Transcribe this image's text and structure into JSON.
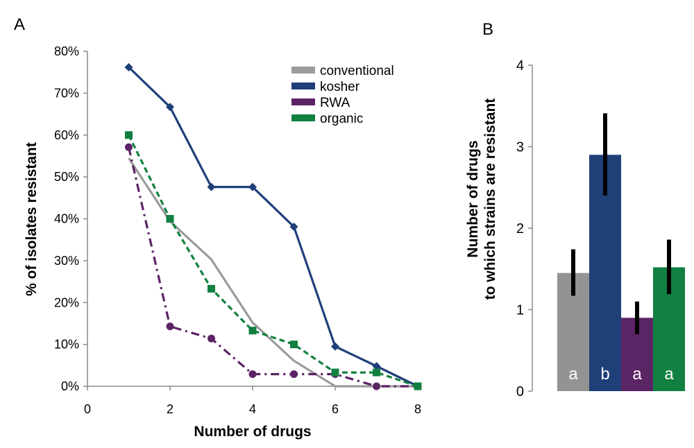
{
  "chart_data": [
    {
      "panel_label": "A",
      "type": "line",
      "xlabel": "Number of drugs",
      "ylabel": "% of isolates resistant",
      "xlim": [
        0,
        8
      ],
      "ylim": [
        0,
        80
      ],
      "x_ticks": [
        "0",
        "2",
        "4",
        "6",
        "8"
      ],
      "y_ticks": [
        "0%",
        "10%",
        "20%",
        "30%",
        "40%",
        "50%",
        "60%",
        "70%",
        "80%"
      ],
      "grid": false,
      "legend_position": "top-right",
      "series": [
        {
          "name": "conventional",
          "color": "#9b9b9b",
          "line_style": "solid",
          "marker": "none",
          "x": [
            1,
            2,
            3,
            4,
            5,
            6,
            7,
            8
          ],
          "y": [
            54.5,
            39.4,
            30.3,
            15.2,
            6.1,
            0,
            0,
            0
          ]
        },
        {
          "name": "kosher",
          "color": "#1f3f79",
          "line_style": "solid",
          "marker": "diamond",
          "x": [
            1,
            2,
            3,
            4,
            5,
            6,
            7,
            8
          ],
          "y": [
            76.2,
            66.7,
            47.6,
            47.6,
            38.1,
            9.5,
            4.8,
            0
          ]
        },
        {
          "name": "RWA",
          "color": "#5b2464",
          "line_style": "dash-dot",
          "marker": "circle",
          "x": [
            1,
            2,
            3,
            4,
            5,
            6,
            7,
            8
          ],
          "y": [
            57.1,
            14.3,
            11.4,
            2.9,
            2.9,
            2.9,
            0,
            0
          ]
        },
        {
          "name": "organic",
          "color": "#118040",
          "line_style": "dashed",
          "marker": "square",
          "x": [
            1,
            2,
            3,
            4,
            5,
            6,
            7,
            8
          ],
          "y": [
            60,
            40,
            23.3,
            13.3,
            10,
            3.3,
            3.3,
            0
          ]
        }
      ]
    },
    {
      "panel_label": "B",
      "type": "bar",
      "ylabel_lines": [
        "Number of drugs",
        "to which strains are resistant"
      ],
      "ylim": [
        0,
        4
      ],
      "y_ticks": [
        "0",
        "1",
        "2",
        "3",
        "4"
      ],
      "grid": false,
      "bars": [
        {
          "letter": "a",
          "color": "#939393",
          "value": 1.45,
          "err_low": 1.17,
          "err_high": 1.74
        },
        {
          "letter": "b",
          "color": "#1f3f79",
          "value": 2.9,
          "err_low": 2.4,
          "err_high": 3.41
        },
        {
          "letter": "a",
          "color": "#5b2464",
          "value": 0.9,
          "err_low": 0.7,
          "err_high": 1.1
        },
        {
          "letter": "a",
          "color": "#118040",
          "value": 1.52,
          "err_low": 1.19,
          "err_high": 1.86
        }
      ]
    }
  ]
}
